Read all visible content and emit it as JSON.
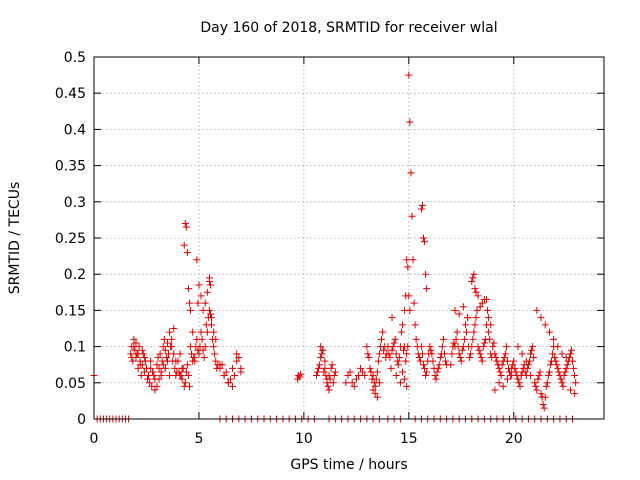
{
  "chart_data": {
    "type": "scatter",
    "title": "Day 160 of 2018, SRMTID for receiver wlal",
    "xlabel": "GPS time / hours",
    "ylabel": "SRMTID / TECUs",
    "xlim": [
      0,
      24.3
    ],
    "ylim": [
      0,
      0.5
    ],
    "xticks": [
      0,
      5,
      10,
      15,
      20
    ],
    "yticks": [
      0,
      0.05,
      0.1,
      0.15,
      0.2,
      0.25,
      0.3,
      0.35,
      0.4,
      0.45,
      0.5
    ],
    "grid": true,
    "marker": "plus",
    "series": [
      {
        "name": "SRMTID",
        "color": "#e00000",
        "x": [
          0.0,
          0.15,
          0.3,
          0.45,
          0.6,
          0.75,
          0.9,
          1.05,
          1.2,
          1.35,
          1.5,
          1.65,
          1.75,
          1.8,
          1.85,
          1.9,
          1.95,
          2.0,
          2.05,
          2.1,
          2.15,
          2.2,
          2.25,
          2.3,
          2.35,
          2.4,
          2.45,
          2.5,
          2.55,
          2.6,
          2.65,
          2.7,
          2.75,
          2.8,
          2.85,
          2.9,
          1.8,
          1.9,
          2.0,
          2.1,
          2.2,
          2.3,
          2.4,
          2.5,
          2.6,
          2.7,
          2.8,
          2.9,
          3.0,
          3.05,
          3.1,
          3.15,
          3.2,
          3.25,
          3.3,
          3.35,
          3.4,
          3.45,
          3.5,
          3.55,
          3.6,
          3.65,
          3.7,
          3.75,
          3.8,
          3.85,
          3.9,
          3.95,
          3.0,
          3.1,
          3.2,
          3.3,
          3.4,
          3.5,
          3.6,
          3.7,
          3.8,
          3.9,
          4.0,
          4.05,
          4.1,
          4.15,
          4.2,
          4.25,
          4.3,
          4.35,
          4.4,
          4.45,
          4.5,
          4.55,
          4.6,
          4.65,
          4.7,
          4.75,
          4.8,
          4.85,
          4.9,
          4.95,
          4.1,
          4.2,
          4.3,
          4.35,
          4.4,
          4.45,
          4.5,
          4.55,
          4.6,
          4.7,
          4.8,
          5.0,
          5.05,
          5.1,
          5.15,
          5.2,
          5.25,
          5.3,
          5.35,
          5.4,
          5.45,
          5.5,
          5.55,
          5.6,
          5.65,
          5.7,
          5.75,
          5.8,
          5.85,
          5.9,
          5.0,
          5.1,
          5.2,
          5.3,
          5.4,
          5.5,
          5.6,
          5.7,
          5.8,
          4.9,
          4.95,
          5.5,
          5.55,
          6.0,
          6.1,
          6.2,
          6.3,
          6.4,
          6.5,
          6.6,
          6.7,
          6.8,
          6.9,
          7.0,
          6.0,
          6.2,
          6.4,
          6.6,
          6.8,
          7.0,
          6.0,
          6.3,
          6.6,
          6.9,
          7.2,
          7.5,
          7.8,
          8.1,
          8.4,
          8.7,
          9.0,
          9.3,
          9.6,
          9.9,
          10.2,
          10.5,
          9.7,
          9.75,
          9.8,
          9.85,
          10.6,
          10.65,
          10.7,
          10.75,
          10.8,
          10.85,
          10.9,
          10.95,
          11.0,
          11.05,
          11.1,
          11.15,
          11.2,
          11.25,
          11.3,
          11.35,
          11.4,
          11.45,
          11.5,
          10.8,
          10.9,
          11.0,
          11.1,
          11.2,
          11.2,
          11.5,
          11.8,
          12.1,
          12.4,
          12.7,
          13.0,
          13.3,
          13.6,
          14.0,
          14.3,
          14.6,
          12.0,
          12.1,
          12.2,
          12.3,
          12.4,
          12.5,
          12.6,
          12.7,
          12.8,
          12.9,
          13.0,
          13.05,
          13.1,
          13.15,
          13.2,
          13.25,
          13.3,
          13.35,
          13.4,
          13.45,
          13.5,
          13.55,
          13.6,
          13.65,
          13.7,
          13.75,
          13.8,
          13.85,
          13.9,
          13.95,
          13.3,
          13.4,
          13.5,
          13.6,
          14.0,
          14.05,
          14.1,
          14.15,
          14.2,
          14.25,
          14.3,
          14.35,
          14.4,
          14.45,
          14.5,
          14.55,
          14.6,
          14.65,
          14.7,
          14.75,
          14.8,
          14.85,
          14.9,
          14.95,
          14.2,
          14.4,
          14.6,
          14.7,
          14.8,
          14.9,
          14.8,
          14.85,
          14.9,
          14.95,
          15.0,
          15.05,
          15.0,
          15.05,
          15.1,
          15.15,
          15.2,
          15.25,
          15.3,
          15.35,
          15.4,
          15.45,
          15.5,
          15.55,
          15.6,
          15.65,
          15.7,
          15.75,
          15.8,
          15.85,
          15.9,
          15.95,
          15.6,
          15.65,
          15.7,
          15.75,
          15.8,
          15.85,
          16.0,
          16.05,
          16.1,
          16.15,
          16.2,
          16.25,
          16.3,
          16.35,
          16.4,
          16.45,
          16.5,
          16.55,
          16.6,
          16.65,
          16.7,
          16.75,
          16.8,
          15.3,
          15.6,
          15.9,
          16.2,
          16.5,
          16.8,
          17.1,
          17.4,
          17.7,
          18.0,
          18.3,
          18.6,
          18.9,
          19.2,
          19.5,
          19.8,
          20.1,
          20.4,
          20.7,
          21.0,
          21.3,
          21.6,
          21.9,
          22.2,
          22.5,
          22.8,
          17.0,
          17.05,
          17.1,
          17.15,
          17.2,
          17.25,
          17.3,
          17.35,
          17.4,
          17.45,
          17.5,
          17.55,
          17.6,
          17.65,
          17.7,
          17.75,
          17.8,
          17.85,
          17.9,
          17.95,
          17.2,
          17.4,
          17.6,
          17.8,
          18.0,
          18.05,
          18.1,
          18.15,
          18.2,
          18.25,
          18.3,
          18.35,
          18.4,
          18.45,
          18.5,
          18.55,
          18.6,
          18.65,
          18.7,
          18.75,
          18.8,
          18.85,
          18.9,
          18.95,
          18.0,
          18.05,
          18.1,
          18.15,
          18.2,
          18.3,
          18.4,
          18.5,
          18.6,
          18.7,
          18.8,
          18.9,
          19.0,
          19.05,
          19.1,
          19.15,
          19.2,
          19.25,
          19.3,
          19.35,
          19.4,
          19.45,
          19.5,
          19.55,
          19.6,
          19.65,
          19.7,
          19.75,
          19.8,
          19.85,
          19.9,
          19.95,
          19.1,
          19.3,
          19.5,
          19.7,
          19.9,
          20.0,
          20.05,
          20.1,
          20.15,
          20.2,
          20.25,
          20.3,
          20.35,
          20.4,
          20.45,
          20.5,
          20.55,
          20.6,
          20.65,
          20.7,
          20.75,
          20.8,
          20.85,
          20.9,
          20.95,
          20.2,
          20.4,
          20.6,
          20.8,
          21.0,
          21.05,
          21.1,
          21.15,
          21.2,
          21.25,
          21.3,
          21.35,
          21.4,
          21.45,
          21.5,
          21.55,
          21.6,
          21.65,
          21.7,
          21.75,
          21.8,
          21.85,
          21.9,
          21.95,
          21.1,
          21.3,
          21.5,
          21.7,
          21.9,
          22.0,
          22.05,
          22.1,
          22.15,
          22.2,
          22.25,
          22.3,
          22.35,
          22.4,
          22.45,
          22.5,
          22.55,
          22.6,
          22.65,
          22.7,
          22.75,
          22.8,
          22.85,
          22.9,
          22.95,
          22.1,
          22.3,
          22.5,
          22.7,
          22.9
        ],
        "y": [
          0.06,
          0.0,
          0.0,
          0.0,
          0.0,
          0.0,
          0.0,
          0.0,
          0.0,
          0.0,
          0.0,
          0.0,
          0.09,
          0.1,
          0.08,
          0.11,
          0.095,
          0.085,
          0.09,
          0.07,
          0.1,
          0.08,
          0.06,
          0.075,
          0.09,
          0.065,
          0.08,
          0.07,
          0.055,
          0.06,
          0.05,
          0.07,
          0.045,
          0.065,
          0.06,
          0.055,
          0.085,
          0.1,
          0.105,
          0.09,
          0.075,
          0.095,
          0.085,
          0.07,
          0.06,
          0.08,
          0.065,
          0.04,
          0.075,
          0.085,
          0.07,
          0.09,
          0.06,
          0.08,
          0.1,
          0.11,
          0.095,
          0.085,
          0.105,
          0.09,
          0.12,
          0.1,
          0.11,
          0.08,
          0.09,
          0.07,
          0.06,
          0.065,
          0.045,
          0.055,
          0.065,
          0.075,
          0.07,
          0.08,
          0.06,
          0.1,
          0.125,
          0.08,
          0.08,
          0.065,
          0.09,
          0.06,
          0.055,
          0.07,
          0.045,
          0.05,
          0.065,
          0.075,
          0.06,
          0.045,
          0.1,
          0.09,
          0.12,
          0.085,
          0.08,
          0.1,
          0.11,
          0.095,
          0.06,
          0.07,
          0.24,
          0.27,
          0.265,
          0.23,
          0.18,
          0.16,
          0.15,
          0.08,
          0.085,
          0.09,
          0.1,
          0.12,
          0.11,
          0.095,
          0.085,
          0.1,
          0.13,
          0.12,
          0.14,
          0.15,
          0.145,
          0.13,
          0.11,
          0.1,
          0.09,
          0.08,
          0.07,
          0.075,
          0.185,
          0.17,
          0.15,
          0.16,
          0.175,
          0.19,
          0.14,
          0.12,
          0.11,
          0.22,
          0.16,
          0.195,
          0.185,
          0.07,
          0.075,
          0.06,
          0.065,
          0.05,
          0.055,
          0.07,
          0.06,
          0.09,
          0.085,
          0.065,
          0.075,
          0.06,
          0.05,
          0.045,
          0.08,
          0.07,
          0.0,
          0.0,
          0.0,
          0.0,
          0.0,
          0.0,
          0.0,
          0.0,
          0.0,
          0.0,
          0.0,
          0.0,
          0.0,
          0.0,
          0.0,
          0.0,
          0.055,
          0.06,
          0.058,
          0.062,
          0.06,
          0.065,
          0.07,
          0.075,
          0.085,
          0.09,
          0.095,
          0.065,
          0.08,
          0.06,
          0.05,
          0.045,
          0.06,
          0.055,
          0.07,
          0.075,
          0.05,
          0.06,
          0.065,
          0.1,
          0.095,
          0.07,
          0.055,
          0.04,
          0.0,
          0.0,
          0.0,
          0.0,
          0.0,
          0.0,
          0.0,
          0.0,
          0.0,
          0.0,
          0.0,
          0.0,
          0.05,
          0.06,
          0.065,
          0.05,
          0.045,
          0.055,
          0.06,
          0.07,
          0.065,
          0.06,
          0.1,
          0.09,
          0.085,
          0.07,
          0.065,
          0.055,
          0.06,
          0.05,
          0.045,
          0.055,
          0.065,
          0.08,
          0.09,
          0.1,
          0.11,
          0.12,
          0.095,
          0.1,
          0.085,
          0.09,
          0.04,
          0.035,
          0.03,
          0.05,
          0.1,
          0.09,
          0.085,
          0.07,
          0.095,
          0.1,
          0.105,
          0.11,
          0.09,
          0.08,
          0.075,
          0.085,
          0.1,
          0.12,
          0.13,
          0.095,
          0.1,
          0.08,
          0.09,
          0.1,
          0.14,
          0.06,
          0.05,
          0.065,
          0.055,
          0.045,
          0.15,
          0.17,
          0.22,
          0.21,
          0.17,
          0.15,
          0.475,
          0.41,
          0.34,
          0.28,
          0.22,
          0.16,
          0.13,
          0.11,
          0.1,
          0.09,
          0.085,
          0.08,
          0.1,
          0.09,
          0.075,
          0.07,
          0.06,
          0.065,
          0.08,
          0.09,
          0.29,
          0.295,
          0.25,
          0.245,
          0.2,
          0.18,
          0.1,
          0.095,
          0.09,
          0.08,
          0.07,
          0.06,
          0.055,
          0.065,
          0.07,
          0.075,
          0.085,
          0.09,
          0.1,
          0.11,
          0.09,
          0.08,
          0.075,
          0.0,
          0.0,
          0.0,
          0.0,
          0.0,
          0.0,
          0.0,
          0.0,
          0.0,
          0.0,
          0.0,
          0.0,
          0.0,
          0.0,
          0.0,
          0.0,
          0.0,
          0.0,
          0.0,
          0.0,
          0.0,
          0.0,
          0.0,
          0.0,
          0.0,
          0.0,
          0.075,
          0.09,
          0.1,
          0.105,
          0.1,
          0.11,
          0.12,
          0.1,
          0.09,
          0.085,
          0.08,
          0.095,
          0.1,
          0.11,
          0.13,
          0.12,
          0.14,
          0.1,
          0.085,
          0.09,
          0.15,
          0.145,
          0.155,
          0.14,
          0.1,
          0.11,
          0.12,
          0.13,
          0.14,
          0.15,
          0.1,
          0.095,
          0.09,
          0.085,
          0.08,
          0.1,
          0.105,
          0.11,
          0.13,
          0.15,
          0.12,
          0.11,
          0.09,
          0.085,
          0.19,
          0.195,
          0.2,
          0.18,
          0.175,
          0.17,
          0.155,
          0.16,
          0.165,
          0.165,
          0.14,
          0.13,
          0.1,
          0.105,
          0.09,
          0.085,
          0.08,
          0.075,
          0.07,
          0.065,
          0.06,
          0.075,
          0.08,
          0.085,
          0.09,
          0.1,
          0.08,
          0.07,
          0.065,
          0.06,
          0.07,
          0.075,
          0.04,
          0.05,
          0.045,
          0.055,
          0.06,
          0.08,
          0.07,
          0.065,
          0.06,
          0.055,
          0.05,
          0.045,
          0.06,
          0.065,
          0.07,
          0.075,
          0.065,
          0.06,
          0.07,
          0.075,
          0.08,
          0.09,
          0.095,
          0.1,
          0.085,
          0.1,
          0.09,
          0.08,
          0.06,
          0.05,
          0.045,
          0.04,
          0.055,
          0.06,
          0.065,
          0.035,
          0.03,
          0.02,
          0.015,
          0.03,
          0.045,
          0.05,
          0.06,
          0.065,
          0.075,
          0.08,
          0.09,
          0.1,
          0.085,
          0.15,
          0.14,
          0.13,
          0.12,
          0.11,
          0.08,
          0.075,
          0.07,
          0.065,
          0.06,
          0.055,
          0.05,
          0.045,
          0.06,
          0.065,
          0.07,
          0.075,
          0.08,
          0.085,
          0.09,
          0.095,
          0.08,
          0.07,
          0.06,
          0.05,
          0.1,
          0.09,
          0.085,
          0.04,
          0.035
        ]
      }
    ]
  }
}
